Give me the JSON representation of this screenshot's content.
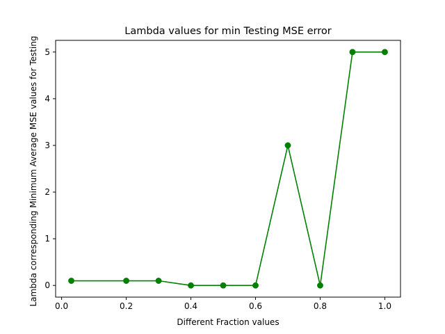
{
  "chart_data": {
    "type": "line",
    "title": "Lambda values for min Testing MSE error",
    "xlabel": "Different Fraction values",
    "ylabel": "Lambda corresponding Minimum Average MSE values for Testing",
    "x": [
      0.03,
      0.2,
      0.3,
      0.4,
      0.5,
      0.6,
      0.7,
      0.8,
      0.9,
      1.0
    ],
    "series": [
      {
        "values": [
          0.1,
          0.1,
          0.1,
          0,
          0,
          0,
          3,
          0,
          5,
          5
        ],
        "color": "#008000",
        "marker": "circle"
      }
    ],
    "xlim": [
      -0.0185,
      1.0485
    ],
    "ylim": [
      -0.25,
      5.25
    ],
    "xticks": [
      0.0,
      0.2,
      0.4,
      0.6,
      0.8,
      1.0
    ],
    "xtick_labels": [
      "0.0",
      "0.2",
      "0.4",
      "0.6",
      "0.8",
      "1.0"
    ],
    "yticks": [
      0,
      1,
      2,
      3,
      4,
      5
    ],
    "ytick_labels": [
      "0",
      "1",
      "2",
      "3",
      "4",
      "5"
    ],
    "grid": false,
    "legend": "none"
  }
}
